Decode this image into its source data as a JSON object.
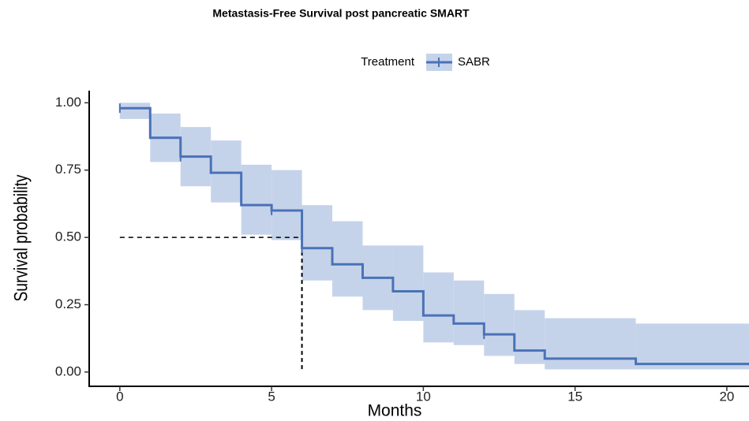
{
  "chart_data": {
    "type": "survival",
    "title": "Metastasis-Free Survival post pancreatic SMART",
    "legend_title": "Treatment",
    "x_label": "Months",
    "y_label": "Survival probability",
    "xlim": [
      -1.01,
      20.73
    ],
    "ylim": [
      -0.053,
      1.045
    ],
    "xticks": [
      0,
      5,
      10,
      15,
      20
    ],
    "yticks": [
      {
        "value": 0,
        "label": "0.00"
      },
      0.25,
      {
        "value": 0.5,
        "label": "0.50"
      },
      0.75,
      {
        "value": 1,
        "label": "1.00"
      }
    ],
    "series": [
      {
        "name": "SABR",
        "color": "#4a72b8",
        "band_color": "#c5d3ea",
        "x": [
          0,
          1,
          2,
          3,
          4,
          5,
          6,
          7,
          8,
          9,
          10,
          11,
          12,
          13,
          14,
          17,
          20.73
        ],
        "values": [
          0.98,
          0.87,
          0.8,
          0.74,
          0.62,
          0.6,
          0.46,
          0.4,
          0.35,
          0.3,
          0.21,
          0.18,
          0.14,
          0.08,
          0.05,
          0.03,
          0.03
        ],
        "lower": [
          0.94,
          0.78,
          0.69,
          0.63,
          0.51,
          0.49,
          0.34,
          0.28,
          0.23,
          0.19,
          0.11,
          0.1,
          0.06,
          0.03,
          0.01,
          0.01,
          0.01
        ],
        "upper": [
          1.0,
          0.96,
          0.91,
          0.86,
          0.77,
          0.75,
          0.62,
          0.56,
          0.47,
          0.47,
          0.37,
          0.34,
          0.29,
          0.23,
          0.2,
          0.18,
          0.18
        ],
        "censor_x": [
          0,
          2,
          5,
          6,
          12
        ],
        "censor_y": [
          0.98,
          0.8,
          0.6,
          0.46,
          0.14
        ]
      }
    ],
    "median_time": 6,
    "median_survival": 0.5
  }
}
